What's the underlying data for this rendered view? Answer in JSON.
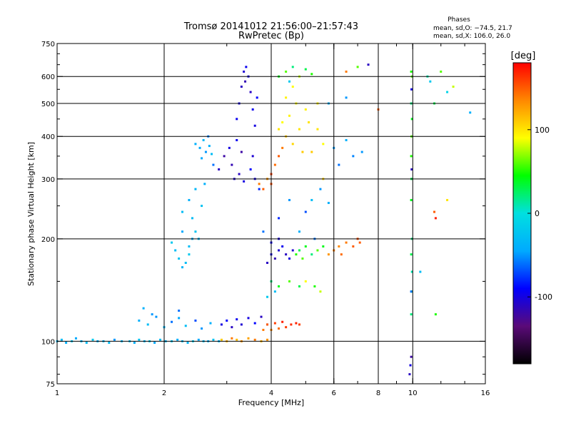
{
  "chart_data": {
    "type": "scatter",
    "title": "Tromsø 20141012 21:56:00–21:57:43",
    "subtitle": "RwPretec (Bp)",
    "xlabel": "Frequency [MHz]",
    "ylabel": "Stationary phase Virtual Height [km]",
    "x_scale": "log",
    "y_scale": "log",
    "xlim": [
      1,
      16
    ],
    "ylim": [
      75,
      750
    ],
    "grid": true,
    "x_ticks": [
      {
        "value": 1,
        "label": "1"
      },
      {
        "value": 2,
        "label": "2"
      },
      {
        "value": 4,
        "label": "4"
      },
      {
        "value": 6,
        "label": "6"
      },
      {
        "value": 8,
        "label": "8"
      },
      {
        "value": 10,
        "label": "10"
      },
      {
        "value": 16,
        "label": "16"
      }
    ],
    "x_grid_lines": [
      2,
      4,
      6,
      8,
      10
    ],
    "y_ticks": [
      {
        "value": 75,
        "label": "75"
      },
      {
        "value": 100,
        "label": "100"
      },
      {
        "value": 200,
        "label": "200"
      },
      {
        "value": 300,
        "label": "300"
      },
      {
        "value": 400,
        "label": "400"
      },
      {
        "value": 500,
        "label": "500"
      },
      {
        "value": 600,
        "label": "600"
      },
      {
        "value": 750,
        "label": "750"
      }
    ],
    "y_grid_lines": [
      100,
      200,
      300,
      400,
      500,
      600
    ],
    "phases_legend": {
      "title": "Phases",
      "line1": "mean, sd,O: −74.5, 21.7",
      "line2": "mean, sd,X: 106.0, 26.0"
    },
    "colorbar": {
      "label": "[deg]",
      "range": [
        -180,
        180
      ],
      "ticks": [
        {
          "value": 100,
          "label": "100"
        },
        {
          "value": 0,
          "label": "0"
        },
        {
          "value": -100,
          "label": "-100"
        }
      ],
      "colormap": [
        "#000000",
        "#5a0a78",
        "#0000ff",
        "#00aaff",
        "#00e0e0",
        "#00ff00",
        "#ffff00",
        "#ff8800",
        "#ff0000"
      ]
    },
    "points": [
      [
        1.0,
        100,
        -35
      ],
      [
        1.03,
        101,
        -30
      ],
      [
        1.06,
        99,
        -40
      ],
      [
        1.1,
        100,
        -25
      ],
      [
        1.13,
        102,
        -45
      ],
      [
        1.17,
        100,
        -35
      ],
      [
        1.21,
        99,
        -30
      ],
      [
        1.26,
        101,
        -20
      ],
      [
        1.3,
        100,
        -40
      ],
      [
        1.35,
        100,
        -35
      ],
      [
        1.4,
        99,
        -30
      ],
      [
        1.45,
        101,
        -50
      ],
      [
        1.52,
        100,
        -35
      ],
      [
        1.6,
        100,
        -30
      ],
      [
        1.65,
        99,
        -40
      ],
      [
        1.7,
        101,
        -25
      ],
      [
        1.76,
        100,
        -35
      ],
      [
        1.82,
        100,
        -20
      ],
      [
        1.88,
        99,
        -45
      ],
      [
        1.95,
        101,
        -30
      ],
      [
        2.02,
        100,
        -35
      ],
      [
        2.1,
        100,
        -25
      ],
      [
        2.18,
        101,
        -40
      ],
      [
        2.25,
        100,
        -30
      ],
      [
        2.33,
        99,
        -35
      ],
      [
        2.41,
        100,
        -20
      ],
      [
        2.5,
        101,
        -45
      ],
      [
        2.58,
        100,
        -30
      ],
      [
        2.66,
        100,
        -40
      ],
      [
        2.75,
        101,
        -25
      ],
      [
        2.85,
        100,
        -35
      ],
      [
        2.9,
        101,
        110
      ],
      [
        3.0,
        100,
        120
      ],
      [
        3.1,
        102,
        140
      ],
      [
        3.2,
        101,
        115
      ],
      [
        3.3,
        100,
        130
      ],
      [
        3.45,
        102,
        125
      ],
      [
        3.6,
        101,
        140
      ],
      [
        3.75,
        100,
        120
      ],
      [
        3.9,
        101,
        130
      ],
      [
        1.7,
        115,
        -40
      ],
      [
        1.8,
        112,
        -30
      ],
      [
        1.9,
        118,
        -50
      ],
      [
        2.0,
        110,
        -35
      ],
      [
        2.1,
        114,
        -60
      ],
      [
        2.2,
        117,
        -45
      ],
      [
        2.3,
        111,
        -30
      ],
      [
        2.45,
        115,
        -70
      ],
      [
        2.55,
        109,
        -50
      ],
      [
        2.7,
        113,
        -40
      ],
      [
        2.9,
        112,
        -100
      ],
      [
        3.0,
        115,
        -90
      ],
      [
        3.1,
        110,
        -110
      ],
      [
        3.2,
        116,
        -95
      ],
      [
        3.3,
        112,
        -105
      ],
      [
        3.45,
        117,
        -100
      ],
      [
        3.6,
        113,
        -90
      ],
      [
        3.75,
        118,
        -110
      ],
      [
        3.9,
        112,
        -100
      ],
      [
        3.8,
        108,
        140
      ],
      [
        3.9,
        112,
        150
      ],
      [
        4.0,
        108,
        135
      ],
      [
        4.1,
        113,
        160
      ],
      [
        4.2,
        109,
        145
      ],
      [
        4.3,
        114,
        170
      ],
      [
        4.4,
        110,
        160
      ],
      [
        4.55,
        112,
        165
      ],
      [
        4.7,
        113,
        170
      ],
      [
        4.8,
        112,
        160
      ],
      [
        1.75,
        125,
        -40
      ],
      [
        1.85,
        120,
        -50
      ],
      [
        2.2,
        123,
        -60
      ],
      [
        2.45,
        380,
        -40
      ],
      [
        2.52,
        370,
        -45
      ],
      [
        2.58,
        390,
        -35
      ],
      [
        2.62,
        360,
        -50
      ],
      [
        2.68,
        375,
        -40
      ],
      [
        2.72,
        355,
        -30
      ],
      [
        2.66,
        400,
        -55
      ],
      [
        2.55,
        345,
        -45
      ],
      [
        2.75,
        330,
        -60
      ],
      [
        2.85,
        320,
        -110
      ],
      [
        2.95,
        350,
        -120
      ],
      [
        3.05,
        370,
        -100
      ],
      [
        3.1,
        330,
        -115
      ],
      [
        3.15,
        300,
        -105
      ],
      [
        3.2,
        390,
        -95
      ],
      [
        3.25,
        310,
        -110
      ],
      [
        3.3,
        360,
        -120
      ],
      [
        3.35,
        295,
        -100
      ],
      [
        3.2,
        450,
        -95
      ],
      [
        3.25,
        500,
        -100
      ],
      [
        3.3,
        560,
        -110
      ],
      [
        3.35,
        620,
        -105
      ],
      [
        3.4,
        640,
        -95
      ],
      [
        3.45,
        600,
        -100
      ],
      [
        3.5,
        540,
        -110
      ],
      [
        3.55,
        480,
        -95
      ],
      [
        3.6,
        430,
        -100
      ],
      [
        3.65,
        520,
        -90
      ],
      [
        3.38,
        580,
        -115
      ],
      [
        3.5,
        320,
        -90
      ],
      [
        3.6,
        300,
        -100
      ],
      [
        3.7,
        280,
        -80
      ],
      [
        3.55,
        350,
        -105
      ],
      [
        3.7,
        290,
        140
      ],
      [
        3.8,
        280,
        150
      ],
      [
        3.9,
        300,
        130
      ],
      [
        4.0,
        310,
        160
      ],
      [
        4.1,
        330,
        145
      ],
      [
        4.2,
        350,
        150
      ],
      [
        4.3,
        370,
        140
      ],
      [
        4.0,
        290,
        155
      ],
      [
        4.2,
        420,
        100
      ],
      [
        4.3,
        440,
        90
      ],
      [
        4.4,
        400,
        110
      ],
      [
        4.5,
        460,
        95
      ],
      [
        4.6,
        380,
        105
      ],
      [
        4.7,
        500,
        90
      ],
      [
        4.8,
        420,
        100
      ],
      [
        4.9,
        360,
        110
      ],
      [
        5.0,
        480,
        95
      ],
      [
        5.1,
        440,
        100
      ],
      [
        4.4,
        520,
        95
      ],
      [
        4.6,
        560,
        90
      ],
      [
        4.2,
        600,
        40
      ],
      [
        4.4,
        620,
        60
      ],
      [
        4.6,
        640,
        20
      ],
      [
        4.8,
        600,
        80
      ],
      [
        5.0,
        630,
        30
      ],
      [
        5.2,
        610,
        50
      ],
      [
        4.5,
        580,
        -20
      ],
      [
        5.2,
        360,
        110
      ],
      [
        5.4,
        420,
        100
      ],
      [
        5.6,
        380,
        90
      ],
      [
        5.4,
        500,
        95
      ],
      [
        5.6,
        300,
        110
      ],
      [
        2.25,
        240,
        -30
      ],
      [
        2.35,
        260,
        -40
      ],
      [
        2.45,
        280,
        -35
      ],
      [
        2.25,
        210,
        -45
      ],
      [
        2.4,
        230,
        -30
      ],
      [
        2.55,
        250,
        -25
      ],
      [
        2.6,
        290,
        -40
      ],
      [
        2.5,
        200,
        -35
      ],
      [
        2.1,
        195,
        -20
      ],
      [
        2.15,
        185,
        -30
      ],
      [
        2.2,
        175,
        -25
      ],
      [
        2.25,
        165,
        -35
      ],
      [
        2.3,
        170,
        -30
      ],
      [
        2.35,
        180,
        -20
      ],
      [
        2.4,
        200,
        -40
      ],
      [
        2.45,
        210,
        -25
      ],
      [
        2.35,
        190,
        -30
      ],
      [
        3.9,
        170,
        -110
      ],
      [
        4.0,
        180,
        -100
      ],
      [
        4.1,
        175,
        -115
      ],
      [
        4.2,
        185,
        -105
      ],
      [
        4.3,
        190,
        -95
      ],
      [
        4.4,
        180,
        -110
      ],
      [
        4.5,
        175,
        -100
      ],
      [
        4.6,
        185,
        -105
      ],
      [
        4.0,
        195,
        -95
      ],
      [
        4.2,
        200,
        -100
      ],
      [
        4.7,
        180,
        50
      ],
      [
        4.8,
        185,
        30
      ],
      [
        4.9,
        175,
        60
      ],
      [
        5.0,
        190,
        40
      ],
      [
        5.2,
        180,
        20
      ],
      [
        5.4,
        185,
        60
      ],
      [
        5.6,
        190,
        40
      ],
      [
        5.8,
        180,
        130
      ],
      [
        6.0,
        185,
        140
      ],
      [
        6.2,
        190,
        135
      ],
      [
        6.5,
        195,
        140
      ],
      [
        6.8,
        190,
        150
      ],
      [
        7.0,
        200,
        155
      ],
      [
        7.1,
        195,
        150
      ],
      [
        6.3,
        180,
        145
      ],
      [
        4.0,
        150,
        20
      ],
      [
        4.2,
        145,
        40
      ],
      [
        4.5,
        150,
        60
      ],
      [
        4.8,
        145,
        30
      ],
      [
        5.0,
        150,
        90
      ],
      [
        5.3,
        145,
        50
      ],
      [
        5.5,
        140,
        80
      ],
      [
        3.9,
        135,
        -20
      ],
      [
        4.1,
        140,
        -30
      ],
      [
        3.8,
        210,
        -60
      ],
      [
        4.2,
        230,
        -80
      ],
      [
        4.5,
        260,
        -50
      ],
      [
        4.8,
        210,
        -40
      ],
      [
        5.0,
        240,
        -70
      ],
      [
        5.2,
        260,
        -30
      ],
      [
        5.5,
        280,
        -50
      ],
      [
        5.3,
        200,
        -60
      ],
      [
        5.8,
        255,
        -40
      ],
      [
        6.0,
        370,
        -50
      ],
      [
        6.2,
        330,
        -60
      ],
      [
        6.5,
        390,
        -40
      ],
      [
        6.8,
        350,
        -55
      ],
      [
        7.2,
        360,
        -50
      ],
      [
        5.8,
        500,
        -40
      ],
      [
        6.5,
        520,
        -50
      ],
      [
        6.5,
        620,
        140
      ],
      [
        7.0,
        640,
        60
      ],
      [
        7.5,
        650,
        -110
      ],
      [
        8.0,
        480,
        150
      ],
      [
        9.8,
        80,
        -110
      ],
      [
        9.85,
        85,
        -100
      ],
      [
        9.9,
        90,
        -120
      ],
      [
        9.9,
        120,
        20
      ],
      [
        9.92,
        140,
        40
      ],
      [
        9.95,
        160,
        10
      ],
      [
        9.9,
        180,
        30
      ],
      [
        9.95,
        200,
        20
      ],
      [
        9.9,
        260,
        40
      ],
      [
        9.92,
        300,
        30
      ],
      [
        9.9,
        350,
        50
      ],
      [
        9.92,
        400,
        60
      ],
      [
        9.95,
        450,
        40
      ],
      [
        9.9,
        500,
        20
      ],
      [
        9.92,
        550,
        -100
      ],
      [
        9.95,
        600,
        60
      ],
      [
        9.9,
        620,
        50
      ],
      [
        9.93,
        320,
        -110
      ],
      [
        9.9,
        140,
        -60
      ],
      [
        11.0,
        600,
        10
      ],
      [
        11.2,
        580,
        -20
      ],
      [
        11.5,
        500,
        30
      ],
      [
        12.0,
        620,
        60
      ],
      [
        12.5,
        540,
        -10
      ],
      [
        13.0,
        560,
        80
      ],
      [
        14.5,
        470,
        -40
      ],
      [
        11.5,
        240,
        150
      ],
      [
        11.6,
        230,
        170
      ],
      [
        12.5,
        260,
        100
      ],
      [
        11.6,
        120,
        50
      ],
      [
        10.5,
        160,
        -30
      ]
    ]
  }
}
